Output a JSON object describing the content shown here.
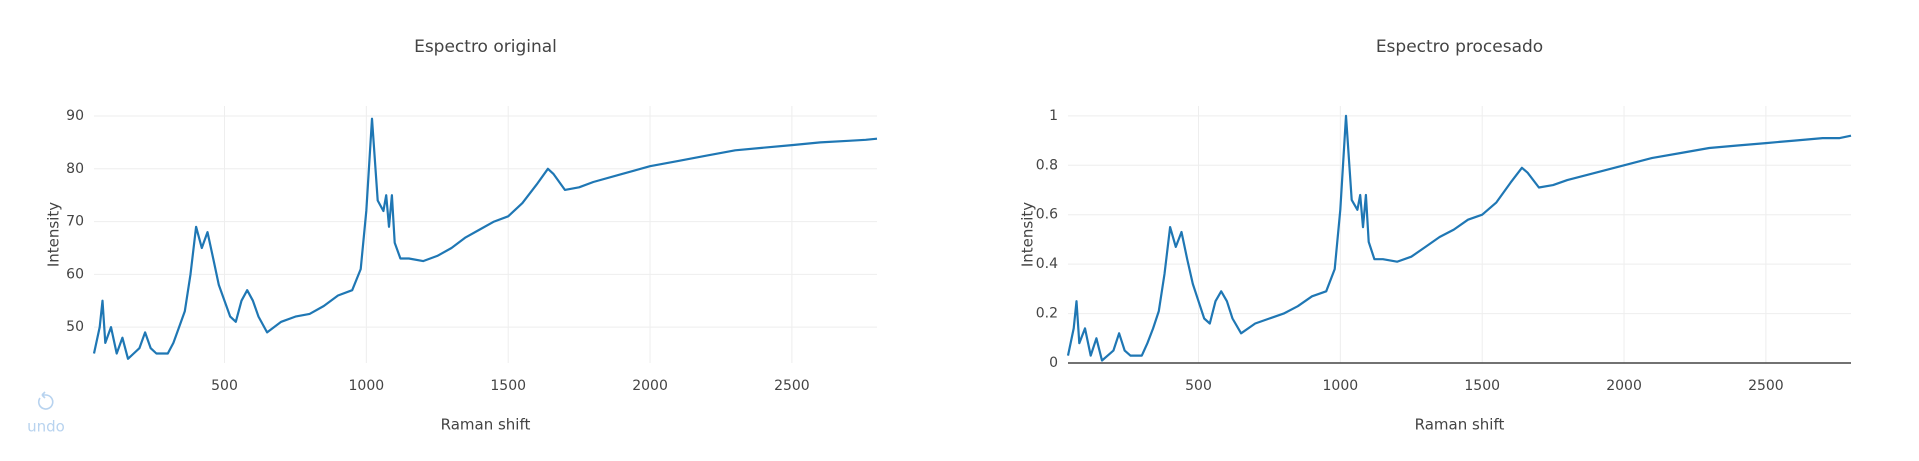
{
  "chart_data": [
    {
      "type": "line",
      "title": "Espectro original",
      "x_label": "Raman shift",
      "y_label": "Intensity",
      "x": [
        40,
        60,
        70,
        80,
        100,
        120,
        140,
        160,
        180,
        200,
        220,
        240,
        260,
        280,
        300,
        320,
        340,
        360,
        380,
        400,
        420,
        440,
        460,
        480,
        500,
        520,
        540,
        560,
        580,
        600,
        620,
        650,
        700,
        750,
        800,
        850,
        900,
        950,
        980,
        1000,
        1020,
        1040,
        1060,
        1070,
        1080,
        1090,
        1100,
        1120,
        1150,
        1200,
        1250,
        1300,
        1350,
        1400,
        1450,
        1500,
        1550,
        1600,
        1640,
        1660,
        1700,
        1750,
        1800,
        1900,
        2000,
        2100,
        2200,
        2300,
        2400,
        2500,
        2600,
        2700,
        2760,
        2800
      ],
      "series": [
        {
          "color": "#1f77b4",
          "values": [
            45,
            50,
            55,
            47,
            50,
            45,
            48,
            44,
            45,
            46,
            49,
            46,
            45,
            45,
            45,
            47,
            50,
            53,
            60,
            69,
            65,
            68,
            63,
            58,
            55,
            52,
            51,
            55,
            57,
            55,
            52,
            49,
            51,
            52,
            52.5,
            54,
            56,
            57,
            61,
            72,
            89.5,
            74,
            72,
            75,
            69,
            75,
            66,
            63,
            63,
            62.5,
            63.5,
            65,
            67,
            68.5,
            70,
            71,
            73.5,
            77,
            80,
            79,
            76,
            76.5,
            77.5,
            79,
            80.5,
            81.5,
            82.5,
            83.5,
            84,
            84.5,
            85,
            85.3,
            85.5,
            85.7
          ]
        }
      ],
      "xlim": [
        40,
        2800
      ],
      "ylim": [
        43.2,
        91.9
      ],
      "xticks": [
        500,
        1000,
        1500,
        2000,
        2500
      ],
      "yticks": [
        50,
        60,
        70,
        80,
        90
      ],
      "grid": true
    },
    {
      "type": "line",
      "title": "Espectro procesado",
      "x_label": "Raman shift",
      "y_label": "Intensity",
      "x": [
        40,
        60,
        70,
        80,
        100,
        120,
        140,
        160,
        180,
        200,
        220,
        240,
        260,
        280,
        300,
        320,
        340,
        360,
        380,
        400,
        420,
        440,
        460,
        480,
        500,
        520,
        540,
        560,
        580,
        600,
        620,
        650,
        700,
        750,
        800,
        850,
        900,
        950,
        980,
        1000,
        1020,
        1040,
        1060,
        1070,
        1080,
        1090,
        1100,
        1120,
        1150,
        1200,
        1250,
        1300,
        1350,
        1400,
        1450,
        1500,
        1550,
        1600,
        1640,
        1660,
        1700,
        1750,
        1800,
        1900,
        2000,
        2100,
        2200,
        2300,
        2400,
        2500,
        2600,
        2700,
        2760,
        2800
      ],
      "series": [
        {
          "color": "#1f77b4",
          "values": [
            0.03,
            0.14,
            0.25,
            0.08,
            0.14,
            0.03,
            0.1,
            0.01,
            0.03,
            0.05,
            0.12,
            0.05,
            0.03,
            0.03,
            0.03,
            0.08,
            0.14,
            0.21,
            0.36,
            0.55,
            0.47,
            0.53,
            0.42,
            0.32,
            0.25,
            0.18,
            0.16,
            0.25,
            0.29,
            0.25,
            0.18,
            0.12,
            0.16,
            0.18,
            0.2,
            0.23,
            0.27,
            0.29,
            0.38,
            0.62,
            1,
            0.66,
            0.62,
            0.68,
            0.55,
            0.68,
            0.49,
            0.42,
            0.42,
            0.41,
            0.43,
            0.47,
            0.51,
            0.54,
            0.58,
            0.6,
            0.65,
            0.73,
            0.79,
            0.77,
            0.71,
            0.72,
            0.74,
            0.77,
            0.8,
            0.83,
            0.85,
            0.87,
            0.88,
            0.89,
            0.9,
            0.91,
            0.91,
            0.92
          ]
        }
      ],
      "xlim": [
        40,
        2800
      ],
      "ylim": [
        0,
        1.04
      ],
      "xticks": [
        500,
        1000,
        1500,
        2000,
        2500
      ],
      "yticks": [
        0,
        0.2,
        0.4,
        0.6,
        0.8,
        1
      ],
      "grid": true
    }
  ],
  "toolbar": {
    "undo": "undo"
  }
}
